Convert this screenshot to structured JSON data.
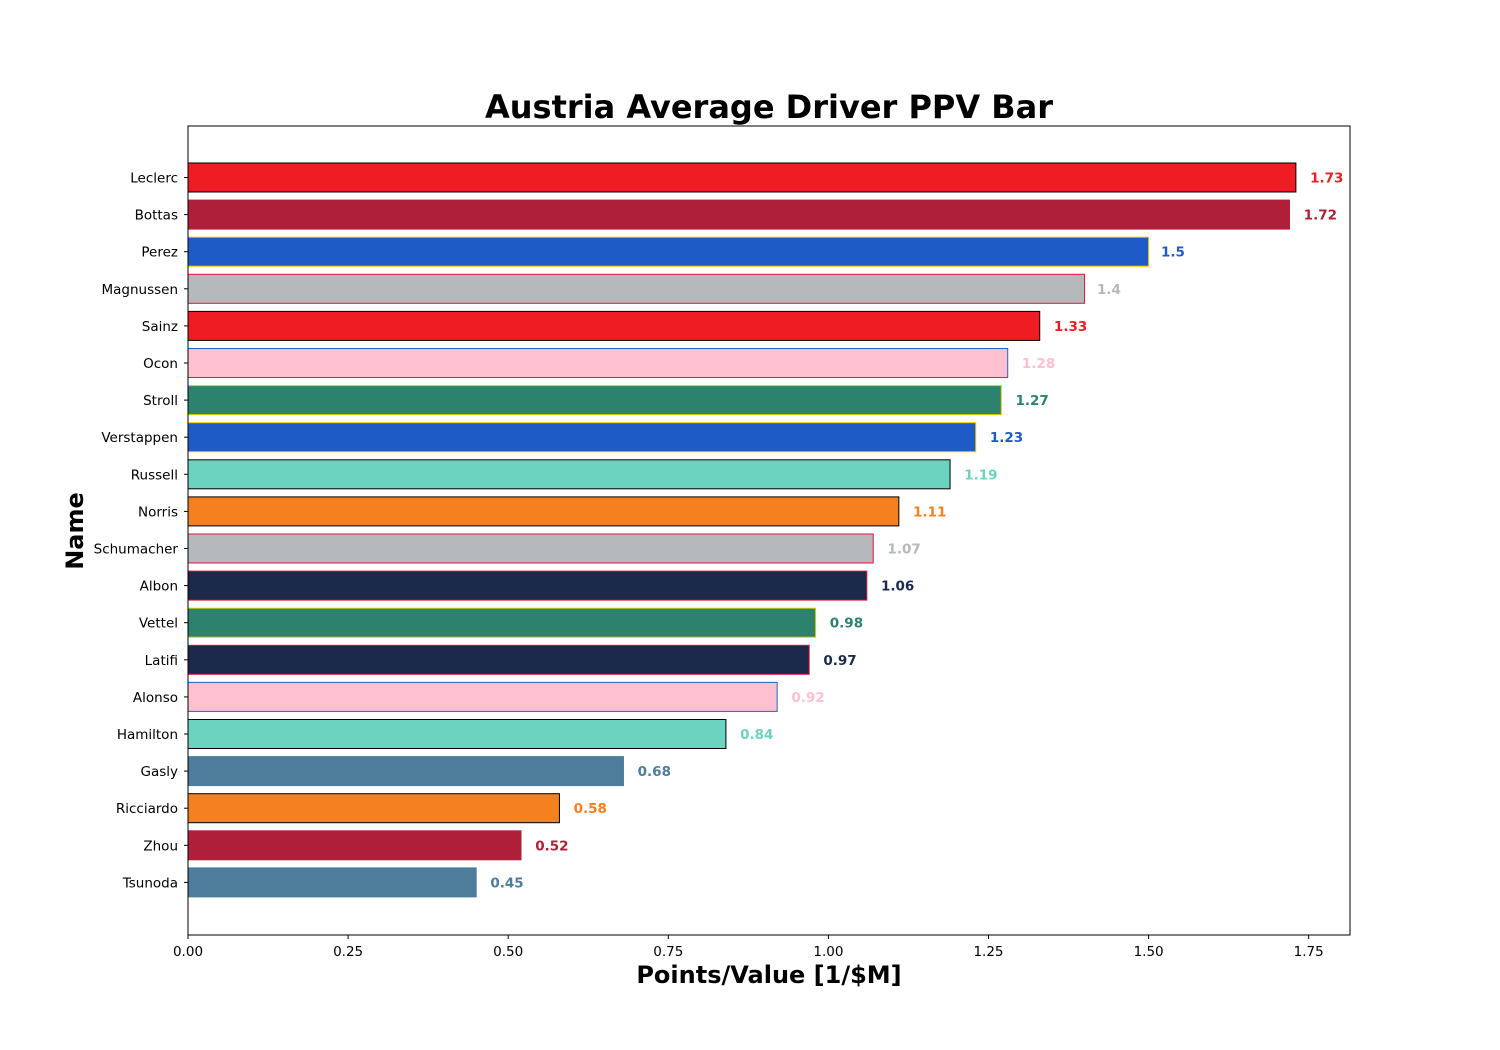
{
  "chart_data": {
    "type": "bar",
    "orientation": "horizontal",
    "title": "Austria Average Driver PPV Bar",
    "xlabel": "Points/Value [1/$M]",
    "ylabel": "Name",
    "xlim": [
      0,
      1.8145
    ],
    "xticks": [
      "0.00",
      "0.25",
      "0.50",
      "0.75",
      "1.00",
      "1.25",
      "1.50",
      "1.75"
    ],
    "xtick_values": [
      0,
      0.25,
      0.5,
      0.75,
      1.0,
      1.25,
      1.5,
      1.75
    ],
    "grid": false,
    "legend": "none",
    "bars": [
      {
        "name": "Leclerc",
        "value": 1.73,
        "label": "1.73",
        "color": "#ef1c24",
        "edge": "#000000"
      },
      {
        "name": "Bottas",
        "value": 1.72,
        "label": "1.72",
        "color": "#b01f39",
        "edge": "#b01f39"
      },
      {
        "name": "Perez",
        "value": 1.5,
        "label": "1.5",
        "color": "#1f5bc6",
        "edge": "#f5c400"
      },
      {
        "name": "Magnussen",
        "value": 1.4,
        "label": "1.4",
        "color": "#b6b9bc",
        "edge": "#dc143c"
      },
      {
        "name": "Sainz",
        "value": 1.33,
        "label": "1.33",
        "color": "#ef1c24",
        "edge": "#000000"
      },
      {
        "name": "Ocon",
        "value": 1.28,
        "label": "1.28",
        "color": "#ffc0d0",
        "edge": "#1e64c8"
      },
      {
        "name": "Stroll",
        "value": 1.27,
        "label": "1.27",
        "color": "#2d826e",
        "edge": "#d4d400"
      },
      {
        "name": "Verstappen",
        "value": 1.23,
        "label": "1.23",
        "color": "#1f5bc6",
        "edge": "#f5c400"
      },
      {
        "name": "Russell",
        "value": 1.19,
        "label": "1.19",
        "color": "#6cd3bf",
        "edge": "#000000"
      },
      {
        "name": "Norris",
        "value": 1.11,
        "label": "1.11",
        "color": "#f58020",
        "edge": "#000000"
      },
      {
        "name": "Schumacher",
        "value": 1.07,
        "label": "1.07",
        "color": "#b6b9bc",
        "edge": "#dc143c"
      },
      {
        "name": "Albon",
        "value": 1.06,
        "label": "1.06",
        "color": "#1b2a4b",
        "edge": "#dc143c"
      },
      {
        "name": "Vettel",
        "value": 0.98,
        "label": "0.98",
        "color": "#2d826e",
        "edge": "#d4d400"
      },
      {
        "name": "Latifi",
        "value": 0.97,
        "label": "0.97",
        "color": "#1b2a4b",
        "edge": "#dc143c"
      },
      {
        "name": "Alonso",
        "value": 0.92,
        "label": "0.92",
        "color": "#ffc0d0",
        "edge": "#1e64c8"
      },
      {
        "name": "Hamilton",
        "value": 0.84,
        "label": "0.84",
        "color": "#6cd3bf",
        "edge": "#000000"
      },
      {
        "name": "Gasly",
        "value": 0.68,
        "label": "0.68",
        "color": "#4e7c9b",
        "edge": "#4e7c9b"
      },
      {
        "name": "Ricciardo",
        "value": 0.58,
        "label": "0.58",
        "color": "#f58020",
        "edge": "#000000"
      },
      {
        "name": "Zhou",
        "value": 0.52,
        "label": "0.52",
        "color": "#b01f39",
        "edge": "#b01f39"
      },
      {
        "name": "Tsunoda",
        "value": 0.45,
        "label": "0.45",
        "color": "#4e7c9b",
        "edge": "#4e7c9b"
      }
    ]
  }
}
